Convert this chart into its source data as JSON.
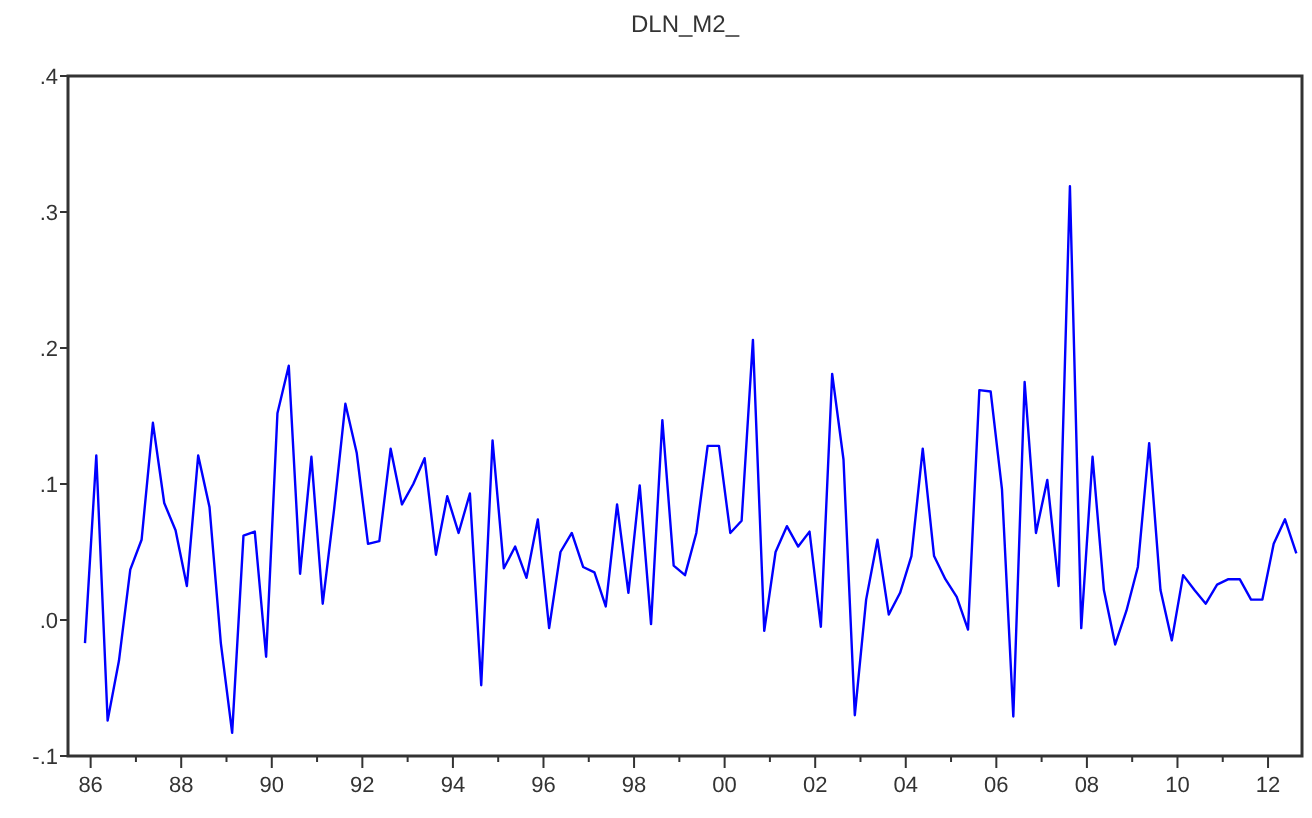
{
  "chart_data": {
    "type": "line",
    "title": "DLN_M2_",
    "x": [
      1985.875,
      1986.125,
      1986.375,
      1986.625,
      1986.875,
      1987.125,
      1987.375,
      1987.625,
      1987.875,
      1988.125,
      1988.375,
      1988.625,
      1988.875,
      1989.125,
      1989.375,
      1989.625,
      1989.875,
      1990.125,
      1990.375,
      1990.625,
      1990.875,
      1991.125,
      1991.375,
      1991.625,
      1991.875,
      1992.125,
      1992.375,
      1992.625,
      1992.875,
      1993.125,
      1993.375,
      1993.625,
      1993.875,
      1994.125,
      1994.375,
      1994.625,
      1994.875,
      1995.125,
      1995.375,
      1995.625,
      1995.875,
      1996.125,
      1996.375,
      1996.625,
      1996.875,
      1997.125,
      1997.375,
      1997.625,
      1997.875,
      1998.125,
      1998.375,
      1998.625,
      1998.875,
      1999.125,
      1999.375,
      1999.625,
      1999.875,
      2000.125,
      2000.375,
      2000.625,
      2000.875,
      2001.125,
      2001.375,
      2001.625,
      2001.875,
      2002.125,
      2002.375,
      2002.625,
      2002.875,
      2003.125,
      2003.375,
      2003.625,
      2003.875,
      2004.125,
      2004.375,
      2004.625,
      2004.875,
      2005.125,
      2005.375,
      2005.625,
      2005.875,
      2006.125,
      2006.375,
      2006.625,
      2006.875,
      2007.125,
      2007.375,
      2007.625,
      2007.875,
      2008.125,
      2008.375,
      2008.625,
      2008.875,
      2009.125,
      2009.375,
      2009.625,
      2009.875,
      2010.125,
      2010.375,
      2010.625,
      2010.875,
      2011.125,
      2011.375,
      2011.625,
      2011.875,
      2012.125,
      2012.375,
      2012.625
    ],
    "series": [
      {
        "color": "#0000ff",
        "values": [
          -0.017,
          0.121,
          -0.074,
          -0.03,
          0.037,
          0.059,
          0.145,
          0.086,
          0.066,
          0.025,
          0.121,
          0.083,
          -0.017,
          -0.083,
          0.062,
          0.065,
          -0.027,
          0.152,
          0.187,
          0.034,
          0.12,
          0.012,
          0.081,
          0.159,
          0.123,
          0.056,
          0.058,
          0.126,
          0.085,
          0.1,
          0.119,
          0.048,
          0.091,
          0.064,
          0.093,
          -0.048,
          0.132,
          0.038,
          0.054,
          0.031,
          0.074,
          -0.006,
          0.05,
          0.064,
          0.039,
          0.035,
          0.01,
          0.085,
          0.02,
          0.099,
          -0.003,
          0.147,
          0.04,
          0.033,
          0.064,
          0.128,
          0.128,
          0.064,
          0.073,
          0.206,
          -0.008,
          0.05,
          0.069,
          0.054,
          0.065,
          -0.005,
          0.181,
          0.118,
          -0.07,
          0.015,
          0.059,
          0.004,
          0.02,
          0.047,
          0.126,
          0.047,
          0.03,
          0.017,
          -0.007,
          0.169,
          0.168,
          0.096,
          -0.071,
          0.175,
          0.064,
          0.103,
          0.025,
          0.319,
          -0.006,
          0.12,
          0.022,
          -0.018,
          0.007,
          0.039,
          0.13,
          0.022,
          -0.015,
          0.033,
          0.022,
          0.012,
          0.026,
          0.03,
          0.03,
          0.015,
          0.015,
          0.056,
          0.074,
          0.049
        ]
      }
    ],
    "xlim": [
      1985.5,
      2012.75
    ],
    "xticks": [
      {
        "value": 1986,
        "label": "86"
      },
      {
        "value": 1987,
        "label": null
      },
      {
        "value": 1988,
        "label": "88"
      },
      {
        "value": 1989,
        "label": null
      },
      {
        "value": 1990,
        "label": "90"
      },
      {
        "value": 1991,
        "label": null
      },
      {
        "value": 1992,
        "label": "92"
      },
      {
        "value": 1993,
        "label": null
      },
      {
        "value": 1994,
        "label": "94"
      },
      {
        "value": 1995,
        "label": null
      },
      {
        "value": 1996,
        "label": "96"
      },
      {
        "value": 1997,
        "label": null
      },
      {
        "value": 1998,
        "label": "98"
      },
      {
        "value": 1999,
        "label": null
      },
      {
        "value": 2000,
        "label": "00"
      },
      {
        "value": 2001,
        "label": null
      },
      {
        "value": 2002,
        "label": "02"
      },
      {
        "value": 2003,
        "label": null
      },
      {
        "value": 2004,
        "label": "04"
      },
      {
        "value": 2005,
        "label": null
      },
      {
        "value": 2006,
        "label": "06"
      },
      {
        "value": 2007,
        "label": null
      },
      {
        "value": 2008,
        "label": "08"
      },
      {
        "value": 2009,
        "label": null
      },
      {
        "value": 2010,
        "label": "10"
      },
      {
        "value": 2011,
        "label": null
      },
      {
        "value": 2012,
        "label": "12"
      }
    ],
    "ylim": [
      -0.1,
      0.4
    ],
    "yticks": [
      {
        "value": -0.1,
        "label": "-.1"
      },
      {
        "value": 0,
        "label": ".0"
      },
      {
        "value": 0.1,
        "label": ".1"
      },
      {
        "value": 0.2,
        "label": ".2"
      },
      {
        "value": 0.3,
        "label": ".3"
      },
      {
        "value": 0.4,
        "label": ".4"
      }
    ],
    "grid": false,
    "marker": "none",
    "line_style": "solid"
  }
}
